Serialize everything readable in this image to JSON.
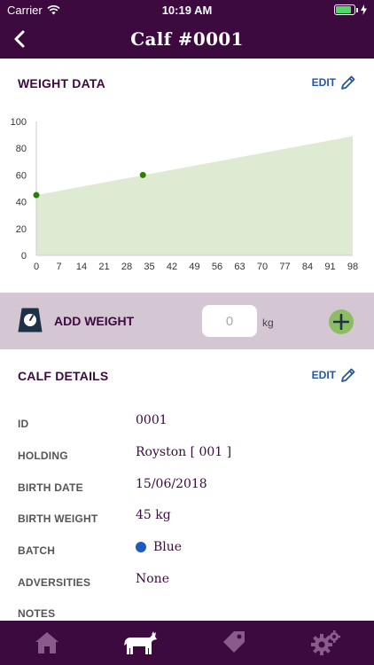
{
  "status_bar": {
    "carrier": "Carrier",
    "time": "10:19 AM",
    "battery_level": 0.85
  },
  "header": {
    "title": "Calf #0001",
    "back_icon": "chevron-left-icon"
  },
  "weight_section": {
    "title": "WEIGHT DATA",
    "edit_label": "EDIT"
  },
  "chart_data": {
    "type": "area",
    "title": "",
    "xlabel": "",
    "ylabel": "",
    "xlim": [
      0,
      98
    ],
    "ylim": [
      0,
      100
    ],
    "xticks": [
      0,
      7,
      14,
      21,
      28,
      35,
      42,
      49,
      56,
      63,
      70,
      77,
      84,
      91,
      98
    ],
    "yticks": [
      0,
      20,
      40,
      60,
      80,
      100
    ],
    "grid": false,
    "series": [
      {
        "kind": "area",
        "x": [
          0,
          98
        ],
        "y": [
          45,
          89
        ],
        "color": "#dfead2"
      },
      {
        "kind": "points",
        "x": [
          0,
          33
        ],
        "y": [
          45,
          60
        ],
        "color": "#2e7d0b"
      }
    ]
  },
  "add_weight": {
    "label": "ADD WEIGHT",
    "input_placeholder": "0",
    "input_value": "",
    "unit": "kg",
    "accent": "#8dbd62"
  },
  "details_section": {
    "title": "CALF DETAILS",
    "edit_label": "EDIT",
    "rows": [
      {
        "label": "ID",
        "value": "0001"
      },
      {
        "label": "HOLDING",
        "value": "Royston [ 001 ]"
      },
      {
        "label": "BIRTH DATE",
        "value": "15/06/2018"
      },
      {
        "label": "BIRTH WEIGHT",
        "value": "45 kg"
      },
      {
        "label": "BATCH",
        "value": "Blue",
        "color": "#1d5bbf"
      },
      {
        "label": "ADVERSITIES",
        "value": "None"
      },
      {
        "label": "NOTES",
        "value": ""
      }
    ]
  },
  "tabbar": {
    "items": [
      {
        "name": "home",
        "icon": "home-icon",
        "active": false
      },
      {
        "name": "calf",
        "icon": "cow-icon",
        "active": true
      },
      {
        "name": "tags",
        "icon": "tag-icon",
        "active": false
      },
      {
        "name": "settings",
        "icon": "gear-icon",
        "active": false
      }
    ]
  },
  "colors": {
    "brand": "#3c0a3f",
    "accent_blue": "#2156a8",
    "band": "#d5c6d3"
  }
}
